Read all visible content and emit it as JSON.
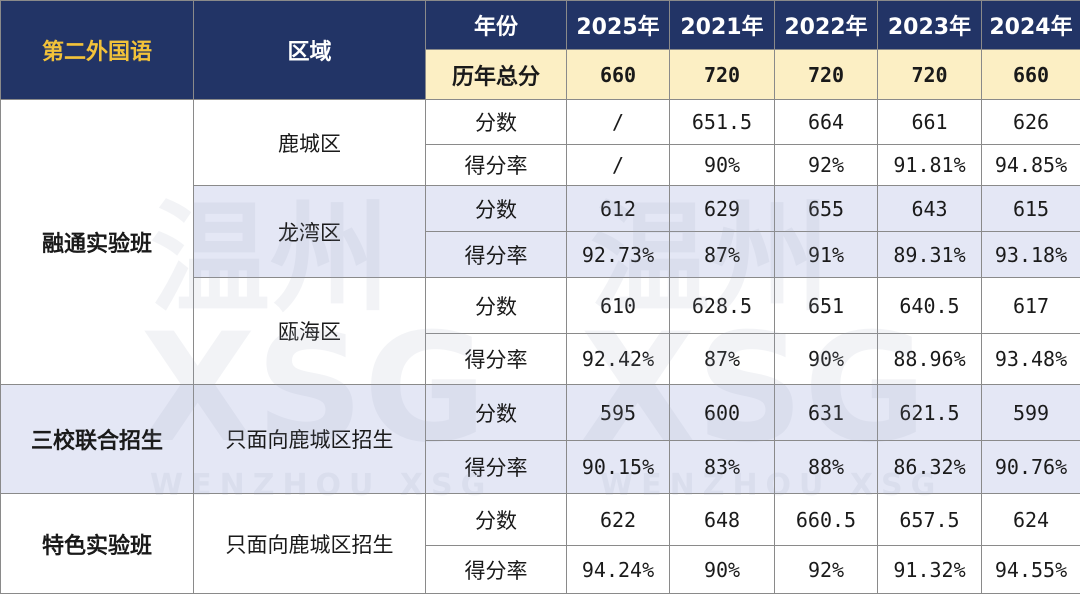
{
  "header": {
    "category": "第二外国语",
    "region": "区域",
    "year_label": "年份",
    "years": [
      "2025年",
      "2021年",
      "2022年",
      "2023年",
      "2024年"
    ],
    "total_label": "历年总分",
    "totals": [
      "660",
      "720",
      "720",
      "720",
      "660"
    ]
  },
  "groups": [
    {
      "name": "融通实验班",
      "regions": [
        {
          "name": "鹿城区",
          "rows": [
            {
              "label": "分数",
              "values": [
                "/",
                "651.5",
                "664",
                "661",
                "626"
              ]
            },
            {
              "label": "得分率",
              "values": [
                "/",
                "90%",
                "92%",
                "91.81%",
                "94.85%"
              ]
            }
          ]
        },
        {
          "name": "龙湾区",
          "rows": [
            {
              "label": "分数",
              "values": [
                "612",
                "629",
                "655",
                "643",
                "615"
              ]
            },
            {
              "label": "得分率",
              "values": [
                "92.73%",
                "87%",
                "91%",
                "89.31%",
                "93.18%"
              ]
            }
          ]
        },
        {
          "name": "瓯海区",
          "rows": [
            {
              "label": "分数",
              "values": [
                "610",
                "628.5",
                "651",
                "640.5",
                "617"
              ]
            },
            {
              "label": "得分率",
              "values": [
                "92.42%",
                "87%",
                "90%",
                "88.96%",
                "93.48%"
              ]
            }
          ]
        }
      ]
    },
    {
      "name": "三校联合招生",
      "regions": [
        {
          "name": "只面向鹿城区招生",
          "rows": [
            {
              "label": "分数",
              "values": [
                "595",
                "600",
                "631",
                "621.5",
                "599"
              ]
            },
            {
              "label": "得分率",
              "values": [
                "90.15%",
                "83%",
                "88%",
                "86.32%",
                "90.76%"
              ]
            }
          ]
        }
      ]
    },
    {
      "name": "特色实验班",
      "regions": [
        {
          "name": "只面向鹿城区招生",
          "rows": [
            {
              "label": "分数",
              "values": [
                "622",
                "648",
                "660.5",
                "657.5",
                "624"
              ]
            },
            {
              "label": "得分率",
              "values": [
                "94.24%",
                "90%",
                "92%",
                "91.32%",
                "94.55%"
              ]
            }
          ]
        }
      ]
    }
  ],
  "watermark": {
    "cn": "温州",
    "latin": "XSG",
    "sub": "WENZHOU XSG"
  }
}
